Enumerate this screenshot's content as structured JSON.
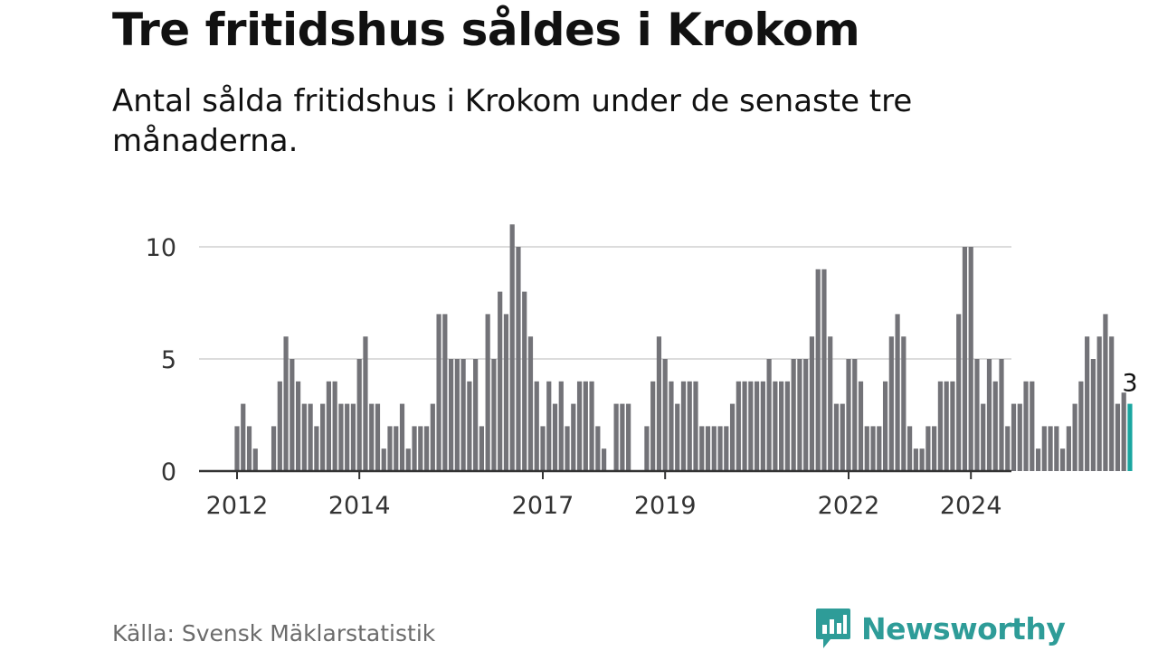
{
  "header": {
    "title": "Tre fritidshus såldes i Krokom",
    "subtitle": "Antal sålda fritidshus i Krokom under de senaste tre månaderna."
  },
  "footer": {
    "source": "Källa: Svensk Mäklarstatistik",
    "brand": "Newsworthy"
  },
  "colors": {
    "bar": "#737378",
    "highlight": "#1aa6a0",
    "grid": "#dcdcdc",
    "axis": "#333333",
    "brand": "#2e9c98"
  },
  "chart_data": {
    "type": "bar",
    "title": "Tre fritidshus såldes i Krokom",
    "xlabel": "",
    "ylabel": "",
    "ylim": [
      0,
      11
    ],
    "yticks": [
      0,
      5,
      10
    ],
    "xticks": [
      "2012",
      "2014",
      "2017",
      "2019",
      "2022",
      "2024"
    ],
    "xtick_month_index": [
      0,
      20,
      50,
      70,
      100,
      120
    ],
    "grid": true,
    "values": [
      2,
      3,
      2,
      1,
      0,
      0,
      2,
      4,
      6,
      5,
      4,
      3,
      3,
      2,
      3,
      4,
      4,
      3,
      3,
      3,
      5,
      6,
      3,
      3,
      1,
      2,
      2,
      3,
      1,
      2,
      2,
      2,
      3,
      7,
      7,
      5,
      5,
      5,
      4,
      5,
      2,
      7,
      5,
      8,
      7,
      11,
      10,
      8,
      6,
      4,
      2,
      4,
      3,
      4,
      2,
      3,
      4,
      4,
      4,
      2,
      1,
      0,
      3,
      3,
      3,
      0,
      0,
      2,
      4,
      6,
      5,
      4,
      3,
      4,
      4,
      4,
      2,
      2,
      2,
      2,
      2,
      3,
      4,
      4,
      4,
      4,
      4,
      5,
      4,
      4,
      4,
      5,
      5,
      5,
      6,
      9,
      9,
      6,
      3,
      3,
      5,
      5,
      4,
      2,
      2,
      2,
      4,
      6,
      7,
      6,
      2,
      1,
      1,
      2,
      2,
      4,
      4,
      4,
      7,
      10,
      10,
      5,
      3,
      5,
      4,
      5,
      2,
      3,
      3,
      4,
      4,
      1,
      2,
      2,
      2,
      1,
      2,
      3,
      4,
      6,
      5,
      6,
      7,
      6,
      3,
      3.5,
      3
    ],
    "highlight_last": true,
    "annotation": {
      "label": "3",
      "value": 3
    }
  }
}
